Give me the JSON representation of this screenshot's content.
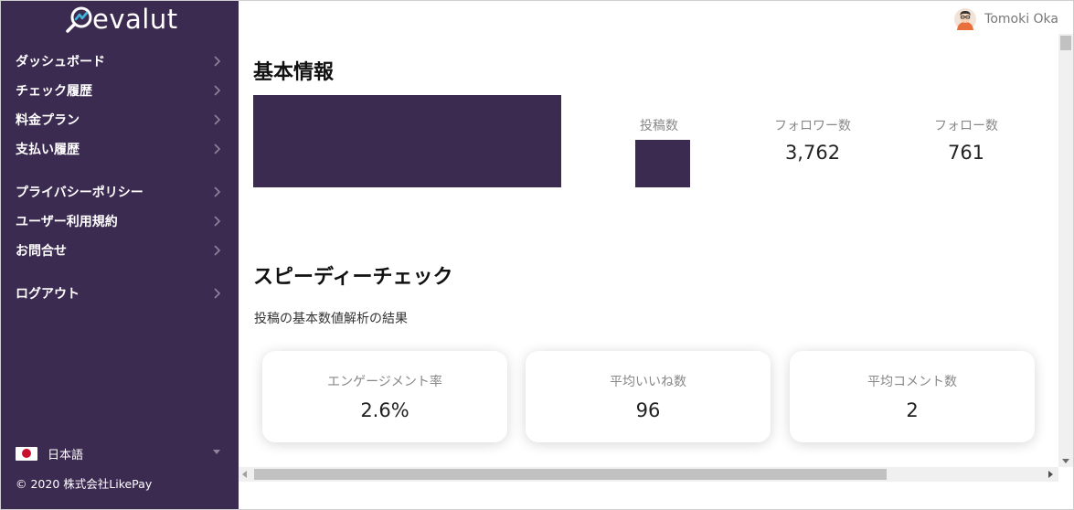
{
  "brand": {
    "name": "evalut",
    "logo_icon": "magnifier-chart-icon"
  },
  "sidebar": {
    "items": [
      {
        "label": "ダッシュボード"
      },
      {
        "label": "チェック履歴"
      },
      {
        "label": "料金プラン"
      },
      {
        "label": "支払い履歴"
      },
      {
        "label": "プライバシーポリシー"
      },
      {
        "label": "ユーザー利用規約"
      },
      {
        "label": "お問合せ"
      },
      {
        "label": "ログアウト"
      }
    ],
    "language": {
      "label": "日本語",
      "flag_icon": "japan-flag-icon"
    },
    "copyright": "© 2020 株式会社LikePay"
  },
  "header": {
    "user_name": "Tomoki Oka",
    "avatar_icon": "avatar-icon"
  },
  "basic_info": {
    "title": "基本情報",
    "stats": [
      {
        "label": "投稿数",
        "value": ""
      },
      {
        "label": "フォロワー数",
        "value": "3,762"
      },
      {
        "label": "フォロー数",
        "value": "761"
      }
    ]
  },
  "speedy_check": {
    "title": "スピーディーチェック",
    "subtitle": "投稿の基本数値解析の結果",
    "cards": [
      {
        "label": "エンゲージメント率",
        "value": "2.6%"
      },
      {
        "label": "平均いいね数",
        "value": "96"
      },
      {
        "label": "平均コメント数",
        "value": "2"
      }
    ]
  },
  "colors": {
    "sidebar_bg": "#3c2b51",
    "placeholder_block": "#3b2b50"
  }
}
